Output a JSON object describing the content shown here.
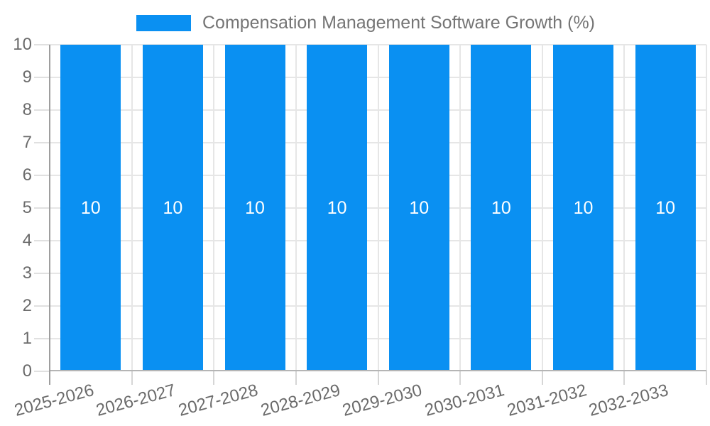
{
  "legend": {
    "label": "Compensation Management Software Growth (%)",
    "swatch_color": "#0a90f2"
  },
  "chart_data": {
    "type": "bar",
    "title": "Compensation Management Software Growth (%)",
    "categories": [
      "2025-2026",
      "2026-2027",
      "2027-2028",
      "2028-2029",
      "2029-2030",
      "2030-2031",
      "2031-2032",
      "2032-2033"
    ],
    "values": [
      10,
      10,
      10,
      10,
      10,
      10,
      10,
      10
    ],
    "value_labels": [
      "10",
      "10",
      "10",
      "10",
      "10",
      "10",
      "10",
      "10"
    ],
    "xlabel": "",
    "ylabel": "",
    "ylim": [
      0,
      10
    ],
    "yticks": [
      0,
      1,
      2,
      3,
      4,
      5,
      6,
      7,
      8,
      9,
      10
    ],
    "grid": true,
    "legend_position": "top",
    "x_tick_rotation_deg": -15,
    "bar_color": "#0a90f2",
    "value_label_color": "#ffffff"
  },
  "colors": {
    "bar": "#0a90f2",
    "gridline": "#e6e6e6",
    "x_axis_line": "#b5b5b5",
    "y_axis_line": "#9e9e9e",
    "tick_mark": "#d6d6d6",
    "tick_label_text": "#6b6b6b",
    "legend_text": "#757575",
    "background": "#ffffff"
  }
}
